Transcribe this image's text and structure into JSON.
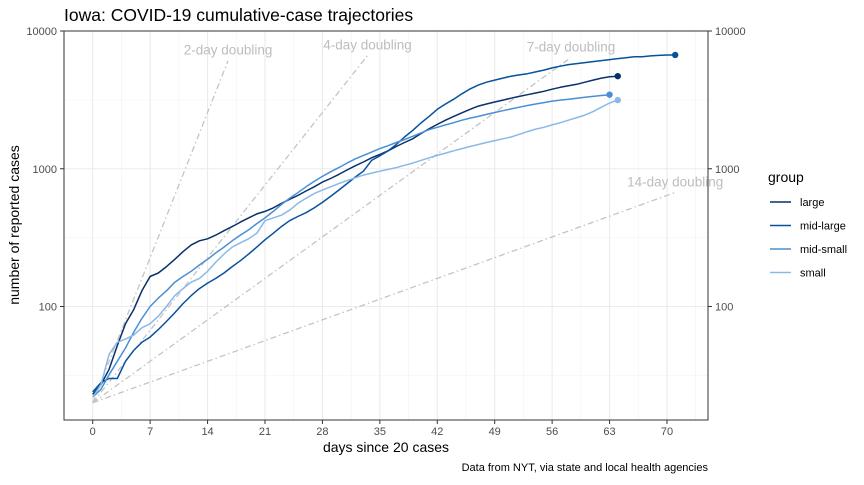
{
  "chart_data": {
    "type": "line",
    "title": "Iowa: COVID-19 cumulative-case trajectories",
    "xlabel": "days since 20 cases",
    "ylabel": "number of reported cases",
    "caption": "Data from NYT, via state and local health agencies",
    "x_ticks": [
      0,
      7,
      14,
      21,
      28,
      35,
      42,
      49,
      56,
      63,
      70
    ],
    "y_ticks": [
      100,
      1000,
      10000
    ],
    "y_scale": "log",
    "xlim": [
      -3.5,
      75
    ],
    "ylim": [
      15,
      10000
    ],
    "legend_title": "group",
    "legend_position": "right",
    "grid": true,
    "series": [
      {
        "name": "large",
        "color": "#08306b",
        "x": [
          0,
          1,
          2,
          3,
          4,
          5,
          6,
          7,
          8,
          9,
          10,
          11,
          12,
          13,
          14,
          15,
          16,
          17,
          18,
          19,
          20,
          21,
          22,
          23,
          24,
          25,
          26,
          27,
          28,
          29,
          30,
          31,
          32,
          33,
          34,
          35,
          36,
          37,
          38,
          39,
          40,
          41,
          42,
          43,
          44,
          45,
          46,
          47,
          48,
          49,
          50,
          51,
          52,
          53,
          54,
          55,
          56,
          57,
          58,
          59,
          60,
          61,
          62,
          63,
          64
        ],
        "y": [
          23,
          27,
          35,
          52,
          75,
          95,
          130,
          165,
          175,
          195,
          220,
          250,
          280,
          300,
          310,
          330,
          355,
          380,
          410,
          440,
          470,
          490,
          520,
          560,
          600,
          640,
          690,
          740,
          800,
          850,
          910,
          980,
          1050,
          1120,
          1200,
          1270,
          1350,
          1450,
          1550,
          1650,
          1800,
          1950,
          2100,
          2250,
          2400,
          2550,
          2700,
          2850,
          2950,
          3050,
          3150,
          3250,
          3350,
          3450,
          3550,
          3650,
          3780,
          3900,
          4000,
          4100,
          4250,
          4400,
          4550,
          4650,
          4700
        ]
      },
      {
        "name": "mid-large",
        "color": "#08519c",
        "x": [
          0,
          1,
          2,
          3,
          4,
          5,
          6,
          7,
          8,
          9,
          10,
          11,
          12,
          13,
          14,
          15,
          16,
          17,
          18,
          19,
          20,
          21,
          22,
          23,
          24,
          25,
          26,
          27,
          28,
          29,
          30,
          31,
          32,
          33,
          34,
          35,
          36,
          37,
          38,
          39,
          40,
          41,
          42,
          43,
          44,
          45,
          46,
          47,
          48,
          49,
          50,
          51,
          52,
          53,
          54,
          55,
          56,
          57,
          58,
          59,
          60,
          61,
          62,
          63,
          64,
          65,
          66,
          67,
          68,
          69,
          70,
          71
        ],
        "y": [
          24,
          28,
          30,
          30,
          40,
          48,
          55,
          60,
          68,
          78,
          90,
          105,
          120,
          135,
          148,
          160,
          175,
          195,
          215,
          240,
          270,
          305,
          340,
          380,
          420,
          450,
          480,
          520,
          570,
          630,
          700,
          780,
          870,
          960,
          1150,
          1240,
          1350,
          1500,
          1700,
          1900,
          2150,
          2400,
          2700,
          2950,
          3200,
          3500,
          3800,
          4050,
          4250,
          4400,
          4550,
          4700,
          4800,
          4900,
          5050,
          5200,
          5400,
          5550,
          5700,
          5800,
          5900,
          6000,
          6100,
          6200,
          6300,
          6400,
          6500,
          6500,
          6600,
          6650,
          6700,
          6700
        ]
      },
      {
        "name": "mid-small",
        "color": "#4a8fd4",
        "x": [
          0,
          1,
          2,
          3,
          4,
          5,
          6,
          7,
          8,
          9,
          10,
          11,
          12,
          13,
          14,
          15,
          16,
          17,
          18,
          19,
          20,
          21,
          22,
          23,
          24,
          25,
          26,
          27,
          28,
          29,
          30,
          31,
          32,
          33,
          34,
          35,
          36,
          37,
          38,
          39,
          40,
          41,
          42,
          43,
          44,
          45,
          46,
          47,
          48,
          49,
          50,
          51,
          52,
          53,
          54,
          55,
          56,
          57,
          58,
          59,
          60,
          61,
          62,
          63
        ],
        "y": [
          22,
          25,
          32,
          40,
          50,
          65,
          82,
          100,
          115,
          130,
          150,
          165,
          180,
          200,
          220,
          245,
          270,
          300,
          330,
          360,
          400,
          440,
          490,
          550,
          610,
          670,
          740,
          810,
          880,
          950,
          1020,
          1100,
          1180,
          1250,
          1320,
          1400,
          1470,
          1550,
          1630,
          1720,
          1820,
          1920,
          2000,
          2080,
          2160,
          2250,
          2330,
          2400,
          2480,
          2560,
          2640,
          2720,
          2800,
          2880,
          2950,
          3020,
          3100,
          3150,
          3200,
          3250,
          3300,
          3350,
          3400,
          3450
        ]
      },
      {
        "name": "small",
        "color": "#8ab9e8",
        "x": [
          0,
          1,
          2,
          3,
          4,
          5,
          6,
          7,
          8,
          9,
          10,
          11,
          12,
          13,
          14,
          15,
          16,
          17,
          18,
          19,
          20,
          21,
          22,
          23,
          24,
          25,
          26,
          27,
          28,
          29,
          30,
          31,
          32,
          33,
          34,
          35,
          36,
          37,
          38,
          39,
          40,
          41,
          42,
          43,
          44,
          45,
          46,
          47,
          48,
          49,
          50,
          51,
          52,
          53,
          54,
          55,
          56,
          57,
          58,
          59,
          60,
          61,
          62,
          63,
          64
        ],
        "y": [
          22,
          27,
          45,
          55,
          58,
          62,
          70,
          75,
          85,
          100,
          120,
          135,
          150,
          160,
          180,
          210,
          240,
          270,
          290,
          310,
          340,
          420,
          440,
          460,
          500,
          560,
          610,
          660,
          700,
          740,
          780,
          820,
          860,
          900,
          930,
          960,
          990,
          1020,
          1060,
          1100,
          1150,
          1200,
          1250,
          1300,
          1350,
          1400,
          1450,
          1500,
          1550,
          1600,
          1650,
          1700,
          1780,
          1860,
          1940,
          2000,
          2080,
          2160,
          2250,
          2350,
          2450,
          2600,
          2800,
          3000,
          3150
        ]
      }
    ],
    "doubling_lines": [
      {
        "label": "2-day doubling",
        "period": 2,
        "x_end": 16.5
      },
      {
        "label": "4-day doubling",
        "period": 4,
        "x_end": 33.5
      },
      {
        "label": "7-day doubling",
        "period": 7,
        "x_end": 58.3
      },
      {
        "label": "14-day doubling",
        "period": 14,
        "x_end": 71
      }
    ],
    "doubling_base": 20
  }
}
